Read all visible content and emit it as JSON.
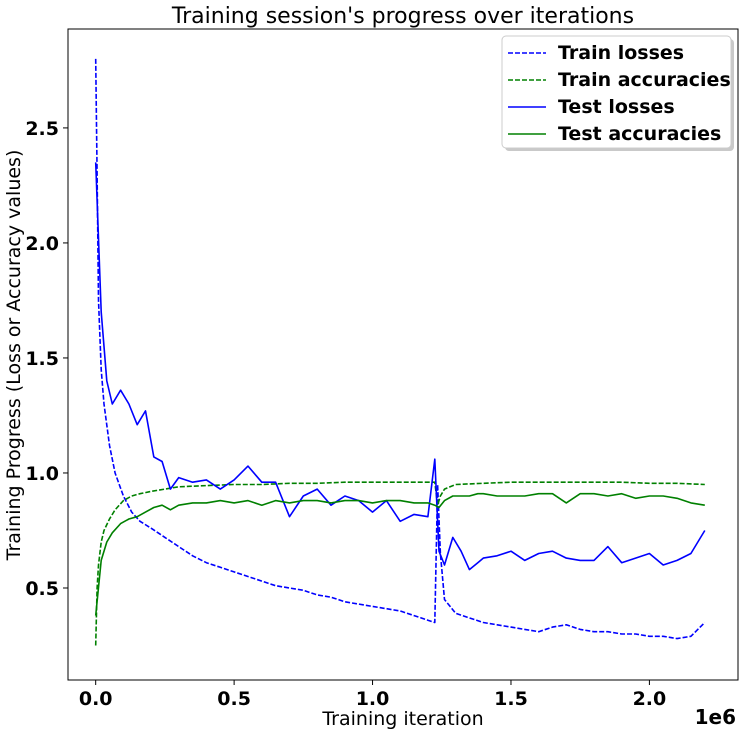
{
  "chart_data": {
    "type": "line",
    "title": "Training session's progress over iterations",
    "xlabel": "Training iteration",
    "ylabel": "Training Progress (Loss or Accuracy values)",
    "x_offset_label": "1e6",
    "xlim": [
      -100000,
      2320000
    ],
    "ylim": [
      0.1,
      2.93
    ],
    "xticks": [
      0,
      500000,
      1000000,
      1500000,
      2000000
    ],
    "xtick_labels": [
      "0.0",
      "0.5",
      "1.0",
      "1.5",
      "2.0"
    ],
    "yticks": [
      0.5,
      1.0,
      1.5,
      2.0,
      2.5
    ],
    "ytick_labels": [
      "0.5",
      "1.0",
      "1.5",
      "2.0",
      "2.5"
    ],
    "grid": false,
    "legend_position": "top-right",
    "colors": {
      "blue": "#0000ff",
      "green": "#008000"
    },
    "series": [
      {
        "name": "Train losses",
        "color": "#0000ff",
        "style": "dashed",
        "x": [
          0,
          5000,
          10000,
          20000,
          30000,
          50000,
          70000,
          100000,
          130000,
          160000,
          200000,
          250000,
          300000,
          350000,
          400000,
          450000,
          500000,
          550000,
          600000,
          650000,
          700000,
          750000,
          800000,
          850000,
          900000,
          950000,
          1000000,
          1050000,
          1100000,
          1150000,
          1200000,
          1225000,
          1235000,
          1245000,
          1260000,
          1280000,
          1300000,
          1350000,
          1400000,
          1450000,
          1500000,
          1550000,
          1600000,
          1650000,
          1700000,
          1750000,
          1800000,
          1850000,
          1900000,
          1950000,
          2000000,
          2050000,
          2100000,
          2150000,
          2200000
        ],
        "y": [
          2.8,
          2.3,
          1.75,
          1.45,
          1.3,
          1.12,
          1.0,
          0.9,
          0.83,
          0.79,
          0.76,
          0.72,
          0.68,
          0.64,
          0.61,
          0.59,
          0.57,
          0.55,
          0.53,
          0.51,
          0.5,
          0.49,
          0.47,
          0.46,
          0.44,
          0.43,
          0.42,
          0.41,
          0.4,
          0.38,
          0.36,
          0.35,
          0.95,
          0.65,
          0.45,
          0.42,
          0.39,
          0.37,
          0.35,
          0.34,
          0.33,
          0.32,
          0.31,
          0.33,
          0.34,
          0.32,
          0.31,
          0.31,
          0.3,
          0.3,
          0.29,
          0.29,
          0.28,
          0.29,
          0.35
        ]
      },
      {
        "name": "Train accuracies",
        "color": "#008000",
        "style": "dashed",
        "x": [
          0,
          5000,
          10000,
          20000,
          30000,
          50000,
          70000,
          100000,
          130000,
          160000,
          200000,
          250000,
          300000,
          400000,
          500000,
          600000,
          700000,
          800000,
          900000,
          1000000,
          1100000,
          1200000,
          1225000,
          1235000,
          1245000,
          1260000,
          1300000,
          1400000,
          1500000,
          1600000,
          1700000,
          1800000,
          1900000,
          2000000,
          2100000,
          2200000
        ],
        "y": [
          0.25,
          0.5,
          0.6,
          0.7,
          0.75,
          0.8,
          0.84,
          0.88,
          0.9,
          0.91,
          0.92,
          0.93,
          0.94,
          0.945,
          0.95,
          0.95,
          0.955,
          0.955,
          0.96,
          0.96,
          0.96,
          0.96,
          0.96,
          0.86,
          0.9,
          0.93,
          0.95,
          0.955,
          0.96,
          0.96,
          0.96,
          0.96,
          0.96,
          0.955,
          0.955,
          0.95
        ]
      },
      {
        "name": "Test losses",
        "color": "#0000ff",
        "style": "solid",
        "x": [
          0,
          20000,
          40000,
          60000,
          90000,
          120000,
          150000,
          180000,
          210000,
          240000,
          270000,
          300000,
          350000,
          400000,
          450000,
          500000,
          550000,
          600000,
          650000,
          700000,
          750000,
          800000,
          850000,
          900000,
          950000,
          1000000,
          1050000,
          1100000,
          1150000,
          1200000,
          1225000,
          1240000,
          1260000,
          1290000,
          1320000,
          1350000,
          1380000,
          1400000,
          1450000,
          1500000,
          1550000,
          1600000,
          1650000,
          1700000,
          1750000,
          1800000,
          1850000,
          1900000,
          1950000,
          2000000,
          2050000,
          2100000,
          2150000,
          2200000
        ],
        "y": [
          2.35,
          1.7,
          1.4,
          1.3,
          1.36,
          1.3,
          1.21,
          1.27,
          1.07,
          1.05,
          0.93,
          0.98,
          0.96,
          0.97,
          0.93,
          0.97,
          1.03,
          0.96,
          0.96,
          0.81,
          0.9,
          0.93,
          0.86,
          0.9,
          0.88,
          0.83,
          0.88,
          0.79,
          0.82,
          0.81,
          1.06,
          0.66,
          0.6,
          0.72,
          0.66,
          0.58,
          0.61,
          0.63,
          0.64,
          0.66,
          0.62,
          0.65,
          0.66,
          0.63,
          0.62,
          0.62,
          0.68,
          0.61,
          0.63,
          0.65,
          0.6,
          0.62,
          0.65,
          0.75
        ]
      },
      {
        "name": "Test accuracies",
        "color": "#008000",
        "style": "solid",
        "x": [
          0,
          20000,
          40000,
          60000,
          90000,
          120000,
          150000,
          180000,
          210000,
          240000,
          270000,
          300000,
          350000,
          400000,
          450000,
          500000,
          550000,
          600000,
          650000,
          700000,
          750000,
          800000,
          850000,
          900000,
          950000,
          1000000,
          1050000,
          1100000,
          1150000,
          1200000,
          1225000,
          1240000,
          1260000,
          1290000,
          1320000,
          1350000,
          1380000,
          1400000,
          1450000,
          1500000,
          1550000,
          1600000,
          1650000,
          1700000,
          1750000,
          1800000,
          1850000,
          1900000,
          1950000,
          2000000,
          2050000,
          2100000,
          2150000,
          2200000
        ],
        "y": [
          0.38,
          0.62,
          0.7,
          0.74,
          0.78,
          0.8,
          0.81,
          0.83,
          0.85,
          0.86,
          0.84,
          0.86,
          0.87,
          0.87,
          0.88,
          0.87,
          0.88,
          0.86,
          0.88,
          0.87,
          0.88,
          0.88,
          0.87,
          0.88,
          0.88,
          0.87,
          0.88,
          0.88,
          0.87,
          0.87,
          0.86,
          0.85,
          0.88,
          0.9,
          0.9,
          0.9,
          0.91,
          0.91,
          0.9,
          0.9,
          0.9,
          0.91,
          0.91,
          0.87,
          0.91,
          0.91,
          0.9,
          0.91,
          0.89,
          0.9,
          0.9,
          0.89,
          0.87,
          0.86
        ]
      }
    ]
  }
}
